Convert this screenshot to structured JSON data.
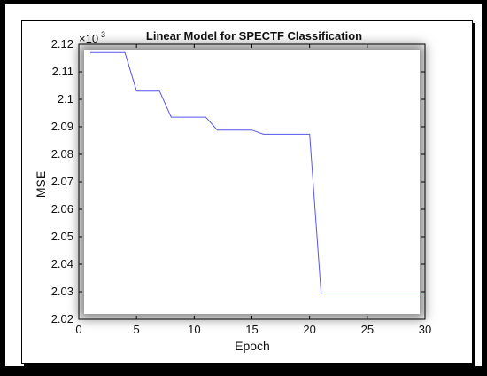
{
  "chart_data": {
    "type": "line",
    "title": "Linear Model for SPECTF Classification",
    "xlabel": "Epoch",
    "ylabel": "MSE",
    "y_exponent_label": "×10",
    "y_exponent_power": "-3",
    "xlim": [
      0,
      30
    ],
    "ylim": [
      2.02,
      2.12
    ],
    "xticks": [
      0,
      5,
      10,
      15,
      20,
      25,
      30
    ],
    "xtick_labels": [
      "0",
      "5",
      "10",
      "15",
      "20",
      "25",
      "30"
    ],
    "yticks": [
      2.02,
      2.03,
      2.04,
      2.05,
      2.06,
      2.07,
      2.08,
      2.09,
      2.1,
      2.11,
      2.12
    ],
    "ytick_labels": [
      "2.02",
      "2.03",
      "2.04",
      "2.05",
      "2.06",
      "2.07",
      "2.08",
      "2.09",
      "2.1",
      "2.11",
      "2.12"
    ],
    "grid": false,
    "series": [
      {
        "color": "#5555ee",
        "x": [
          1,
          2,
          3,
          4,
          5,
          6,
          7,
          8,
          9,
          10,
          11,
          12,
          13,
          14,
          15,
          16,
          17,
          18,
          19,
          20,
          21,
          22,
          23,
          24,
          25,
          26,
          27,
          28,
          29,
          30
        ],
        "y": [
          2.117,
          2.117,
          2.117,
          2.117,
          2.103,
          2.103,
          2.103,
          2.0935,
          2.0935,
          2.0935,
          2.0935,
          2.0888,
          2.0888,
          2.0888,
          2.0888,
          2.0873,
          2.0873,
          2.0873,
          2.0873,
          2.0873,
          2.0292,
          2.0292,
          2.0292,
          2.0292,
          2.0292,
          2.0292,
          2.0292,
          2.0292,
          2.0292,
          2.0292
        ]
      }
    ]
  }
}
